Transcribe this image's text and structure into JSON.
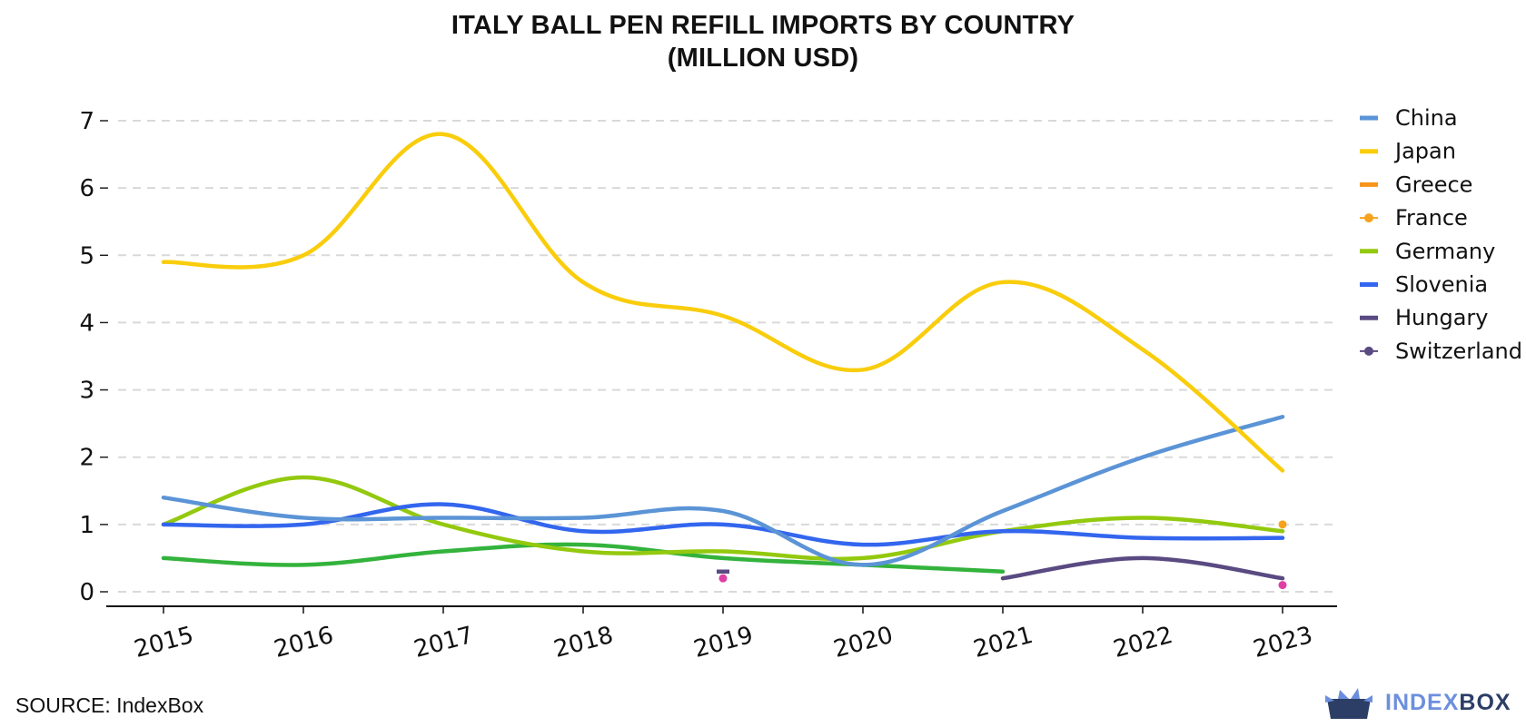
{
  "title_line1": "ITALY BALL PEN REFILL IMPORTS BY COUNTRY",
  "title_line2": "(MILLION USD)",
  "source": "SOURCE: IndexBox",
  "logo": {
    "part1": "INDEX",
    "part2": "BOX",
    "colors": [
      "#6c8fdd",
      "#2c3e66"
    ]
  },
  "chart_data": {
    "type": "line",
    "title": "ITALY BALL PEN REFILL IMPORTS BY COUNTRY (MILLION USD)",
    "x": [
      2015,
      2016,
      2017,
      2018,
      2019,
      2020,
      2021,
      2022,
      2023
    ],
    "xticks": [
      "2015",
      "2016",
      "2017",
      "2018",
      "2019",
      "2020",
      "2021",
      "2022",
      "2023"
    ],
    "yticks": [
      "0",
      "1",
      "2",
      "3",
      "4",
      "5",
      "6",
      "7"
    ],
    "ylim": [
      0,
      7
    ],
    "grid": "horizontal dashed",
    "legend_position": "right",
    "series": [
      {
        "name": "China",
        "color": "#5b94d6",
        "values": [
          1.4,
          1.1,
          1.1,
          1.1,
          1.2,
          0.4,
          1.2,
          2.0,
          2.6
        ]
      },
      {
        "name": "Japan",
        "color": "#f9cd0c",
        "values": [
          4.9,
          5.0,
          6.8,
          4.6,
          4.1,
          3.3,
          4.6,
          3.6,
          1.8
        ]
      },
      {
        "name": "Greece",
        "color": "#f7941d",
        "values": [
          null,
          null,
          null,
          null,
          null,
          null,
          null,
          null,
          null
        ]
      },
      {
        "name": "France",
        "color": "#f7a21d",
        "marker": true,
        "values": [
          null,
          null,
          null,
          null,
          null,
          null,
          null,
          null,
          1.0
        ]
      },
      {
        "name": "Germany",
        "color": "#93c90e",
        "values": [
          1.0,
          1.7,
          1.0,
          0.6,
          0.6,
          0.5,
          0.9,
          1.1,
          0.9
        ]
      },
      {
        "name": "Slovenia",
        "color": "#3366ee",
        "values": [
          1.0,
          1.0,
          1.3,
          0.9,
          1.0,
          0.7,
          0.9,
          0.8,
          0.8
        ]
      },
      {
        "name": "Hungary",
        "color": "#5a4a82",
        "values": [
          null,
          null,
          null,
          null,
          0.3,
          null,
          0.2,
          0.5,
          0.2
        ]
      },
      {
        "name": "Switzerland",
        "color": "#5a4a82",
        "marker": true,
        "values": [
          null,
          null,
          null,
          null,
          null,
          null,
          null,
          null,
          null
        ]
      }
    ],
    "extra_series": [
      {
        "color": "#33b33c",
        "values": [
          0.5,
          0.4,
          0.6,
          0.7,
          0.5,
          0.4,
          0.3,
          null,
          null
        ]
      },
      {
        "color": "#de3fa5",
        "marker": true,
        "values": [
          null,
          null,
          null,
          null,
          0.2,
          null,
          null,
          null,
          0.1
        ]
      }
    ]
  }
}
